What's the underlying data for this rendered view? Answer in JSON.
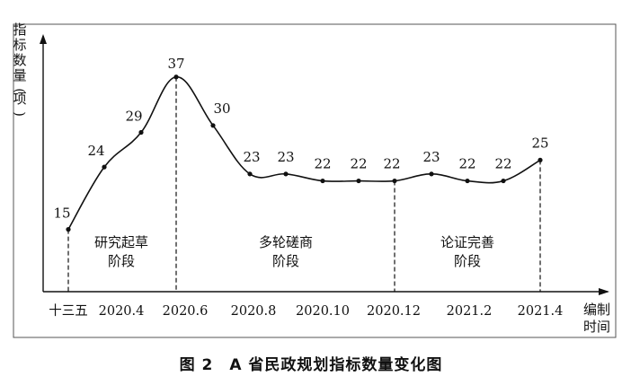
{
  "caption": {
    "figure_no": "图 2",
    "title": "A 省民政规划指标数量变化图"
  },
  "chart_data": {
    "type": "line",
    "ylabel": "指标数量(项)",
    "xlabel_lines": [
      "编制",
      "时间"
    ],
    "x_tick_labels": [
      "十三五",
      "2020.4",
      "2020.6",
      "2020.8",
      "2020.10",
      "2020.12",
      "2021.2",
      "2021.4"
    ],
    "points": [
      {
        "value": 15
      },
      {
        "value": 24
      },
      {
        "value": 29
      },
      {
        "value": 37
      },
      {
        "value": 30
      },
      {
        "value": 23
      },
      {
        "value": 23
      },
      {
        "value": 22
      },
      {
        "value": 22
      },
      {
        "value": 22
      },
      {
        "value": 23
      },
      {
        "value": 22
      },
      {
        "value": 22
      },
      {
        "value": 25
      }
    ],
    "phases": [
      {
        "lines": [
          "研究起草",
          "阶段"
        ]
      },
      {
        "lines": [
          "多轮磋商",
          "阶段"
        ]
      },
      {
        "lines": [
          "论证完善",
          "阶段"
        ]
      }
    ],
    "phase_dividers": [
      "十三五",
      "2020.6",
      "2020.12",
      "2021.4"
    ],
    "ylim": [
      0,
      40
    ],
    "grid": false,
    "legend": "none"
  }
}
